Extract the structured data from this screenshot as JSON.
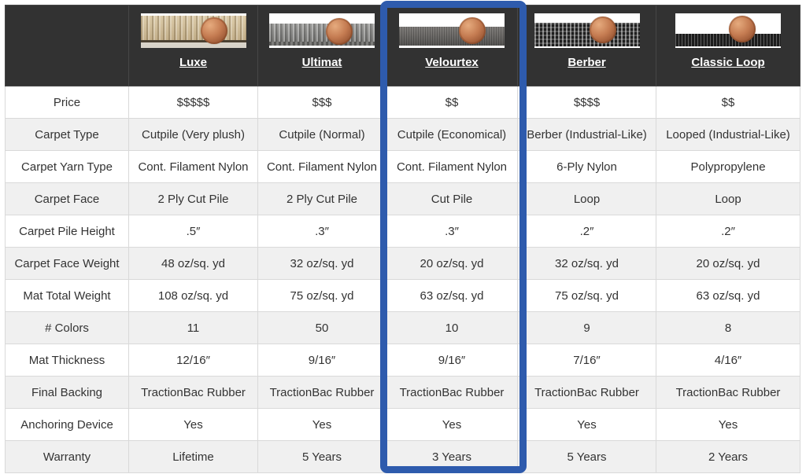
{
  "colors": {
    "highlight_border": "#2e5bad",
    "header_background": "#323232",
    "row_alternate": "#f0f0f0",
    "cell_border": "#d9d9d9",
    "body_text": "#333333",
    "header_text": "#ffffff",
    "penny": "#c47b51"
  },
  "products": [
    {
      "name": "Luxe",
      "style": "luxe",
      "swatch_icon": "tan-plush-carpet-penny-photo"
    },
    {
      "name": "Ultimat",
      "style": "ultimat",
      "swatch_icon": "gray-cutpile-carpet-penny-photo"
    },
    {
      "name": "Velourtex",
      "style": "velourtex",
      "swatch_icon": "dark-gray-cutpile-carpet-penny-photo",
      "highlighted": true
    },
    {
      "name": "Berber",
      "style": "berber",
      "swatch_icon": "black-berber-carpet-penny-photo"
    },
    {
      "name": "Classic Loop",
      "style": "classic",
      "swatch_icon": "black-loop-carpet-penny-photo"
    }
  ],
  "highlighted_product": "Velourtex",
  "rows": [
    {
      "label": "Price",
      "values": [
        "$$$$$",
        "$$$",
        "$$",
        "$$$$",
        "$$"
      ]
    },
    {
      "label": "Carpet Type",
      "values": [
        "Cutpile (Very plush)",
        "Cutpile (Normal)",
        "Cutpile (Economical)",
        "Berber (Industrial-Like)",
        "Looped (Industrial-Like)"
      ]
    },
    {
      "label": "Carpet Yarn Type",
      "values": [
        "Cont. Filament Nylon",
        "Cont. Filament Nylon",
        "Cont. Filament Nylon",
        "6-Ply Nylon",
        "Polypropylene"
      ]
    },
    {
      "label": "Carpet Face",
      "values": [
        "2 Ply Cut Pile",
        "2 Ply Cut Pile",
        "Cut Pile",
        "Loop",
        "Loop"
      ]
    },
    {
      "label": "Carpet Pile Height",
      "values": [
        ".5″",
        ".3″",
        ".3″",
        ".2″",
        ".2″"
      ]
    },
    {
      "label": "Carpet Face Weight",
      "values": [
        "48 oz/sq. yd",
        "32 oz/sq. yd",
        "20 oz/sq. yd",
        "32 oz/sq. yd",
        "20 oz/sq. yd"
      ]
    },
    {
      "label": "Mat Total Weight",
      "values": [
        "108 oz/sq. yd",
        "75 oz/sq. yd",
        "63 oz/sq. yd",
        "75 oz/sq. yd",
        "63 oz/sq. yd"
      ]
    },
    {
      "label": "# Colors",
      "values": [
        "11",
        "50",
        "10",
        "9",
        "8"
      ]
    },
    {
      "label": "Mat Thickness",
      "values": [
        "12/16″",
        "9/16″",
        "9/16″",
        "7/16″",
        "4/16″"
      ]
    },
    {
      "label": "Final Backing",
      "values": [
        "TractionBac Rubber",
        "TractionBac Rubber",
        "TractionBac Rubber",
        "TractionBac Rubber",
        "TractionBac Rubber"
      ]
    },
    {
      "label": "Anchoring Device",
      "values": [
        "Yes",
        "Yes",
        "Yes",
        "Yes",
        "Yes"
      ]
    },
    {
      "label": "Warranty",
      "values": [
        "Lifetime",
        "5 Years",
        "3 Years",
        "5 Years",
        "2 Years"
      ]
    }
  ]
}
